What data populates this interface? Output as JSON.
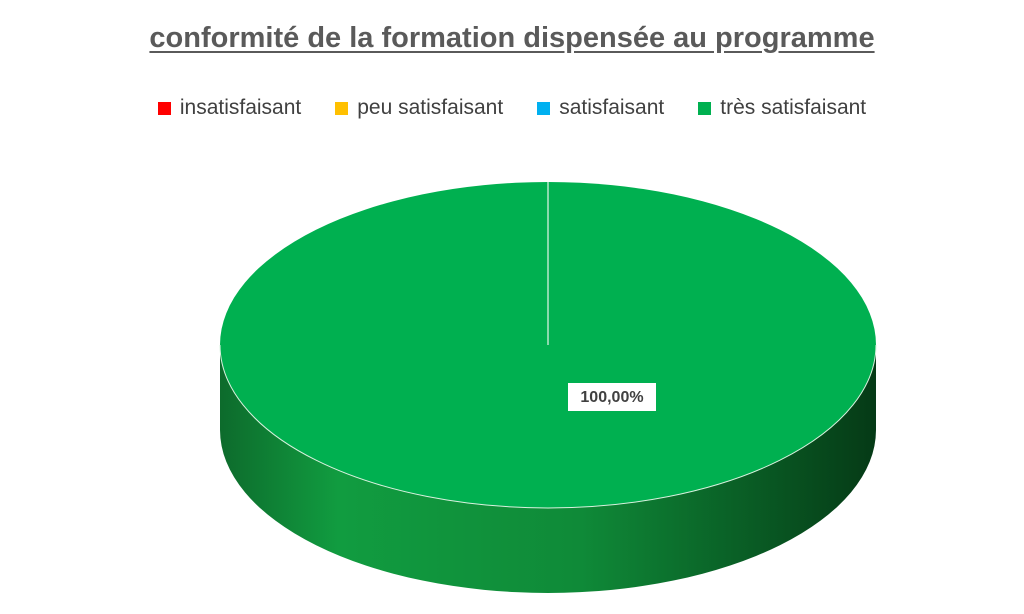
{
  "chart_data": {
    "type": "pie",
    "title": "conformité de la formation dispensée au programme",
    "legend_position": "top",
    "categories": [
      "insatisfaisant",
      "peu satisfaisant",
      "satisfaisant",
      "très satisfaisant"
    ],
    "values": [
      0,
      0,
      0,
      100
    ],
    "colors": [
      "#ff0000",
      "#ffc000",
      "#00b0f0",
      "#00b050"
    ],
    "data_labels": [
      "",
      "",
      "",
      "100,00%"
    ]
  }
}
